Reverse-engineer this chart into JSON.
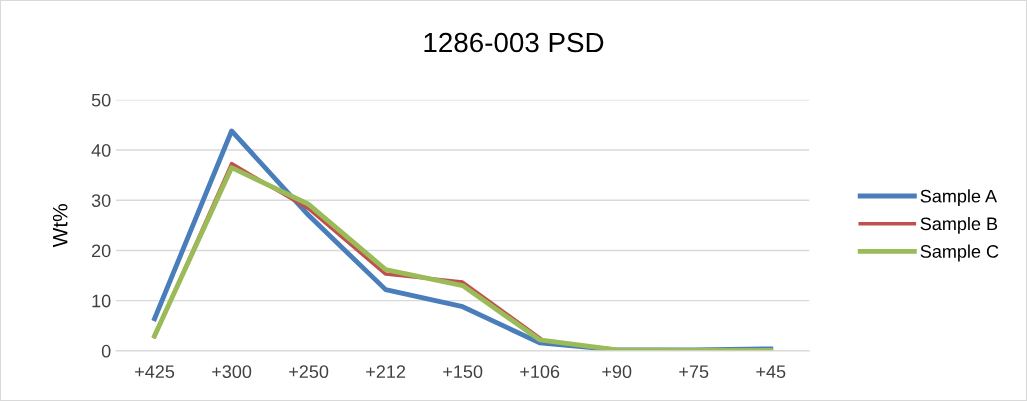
{
  "chart_data": {
    "type": "line",
    "title": "1286-003 PSD",
    "ylabel": "Wt%",
    "categories": [
      "+425",
      "+300",
      "+250",
      "+212",
      "+150",
      "+106",
      "+90",
      "+75",
      "+45"
    ],
    "series": [
      {
        "name": "Sample A",
        "color": "#4a7ebb",
        "values": [
          6.4,
          43.8,
          27,
          12.2,
          8.8,
          1.6,
          0.2,
          0.2,
          0.4
        ]
      },
      {
        "name": "Sample B",
        "color": "#c0504d",
        "values": [
          2.8,
          37.3,
          28.3,
          15.3,
          13.7,
          2.6,
          null,
          null,
          null
        ]
      },
      {
        "name": "Sample C",
        "color": "#9bbb59",
        "values": [
          3.0,
          36.5,
          29.2,
          16.2,
          13.0,
          2.2,
          0.2,
          0.1,
          0.1
        ]
      }
    ],
    "ylim": [
      0,
      50
    ],
    "yticks": [
      0,
      10,
      20,
      30,
      40,
      50
    ],
    "grid": "y",
    "legend": "right",
    "marker": "none",
    "line_style": "solid"
  }
}
